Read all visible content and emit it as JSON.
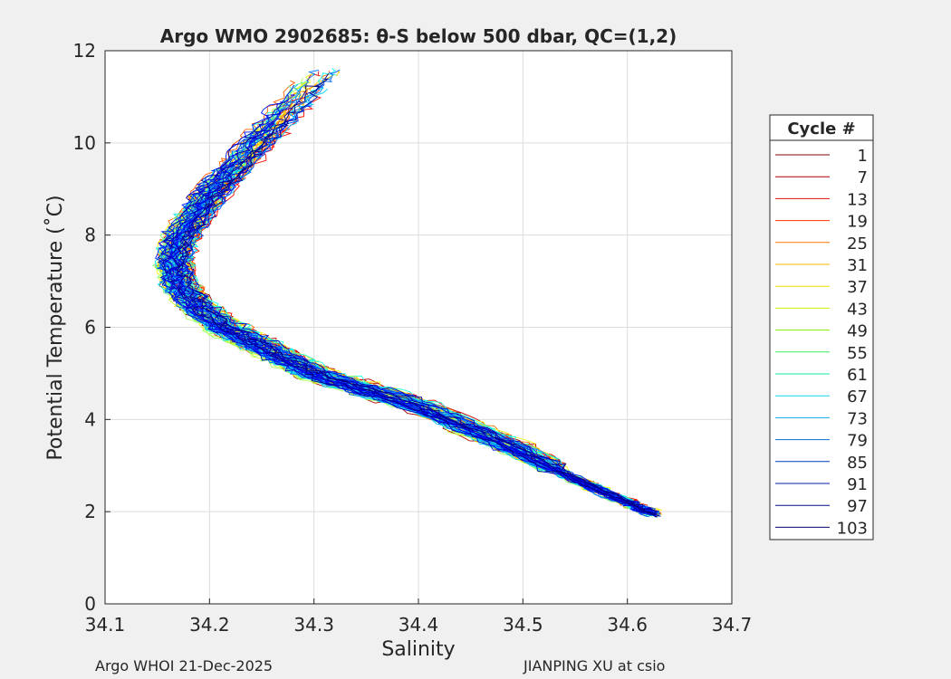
{
  "chart_data": {
    "type": "line",
    "title": "Argo WMO 2902685: θ-S below 500 dbar,  QC=(1,2)",
    "xlabel": "Salinity",
    "ylabel": "Potential Temperature (˚C)",
    "xlim": [
      34.1,
      34.7
    ],
    "ylim": [
      0,
      12
    ],
    "xticks": [
      34.1,
      34.2,
      34.3,
      34.4,
      34.5,
      34.6,
      34.7
    ],
    "yticks": [
      0,
      2,
      4,
      6,
      8,
      10,
      12
    ],
    "grid": true,
    "legend": {
      "title": "Cycle #",
      "placement": "outside-right",
      "entries": [
        "1",
        "7",
        "13",
        "19",
        "25",
        "31",
        "37",
        "43",
        "49",
        "55",
        "61",
        "67",
        "73",
        "79",
        "85",
        "91",
        "97",
        "103"
      ],
      "colors": [
        "#7f0000",
        "#b00000",
        "#e01010",
        "#ff3300",
        "#ff7700",
        "#ffb000",
        "#f0e000",
        "#c8f000",
        "#88f000",
        "#40f060",
        "#10e8a8",
        "#10d8e0",
        "#10a8e8",
        "#0870d0",
        "#0040c0",
        "#0020a8",
        "#00108c",
        "#000070"
      ]
    },
    "series_template": [
      {
        "s": 34.625,
        "t": 1.95
      },
      {
        "s": 34.6,
        "t": 2.2
      },
      {
        "s": 34.55,
        "t": 2.7
      },
      {
        "s": 34.5,
        "t": 3.3
      },
      {
        "s": 34.45,
        "t": 3.8
      },
      {
        "s": 34.4,
        "t": 4.3
      },
      {
        "s": 34.35,
        "t": 4.65
      },
      {
        "s": 34.3,
        "t": 5.0
      },
      {
        "s": 34.27,
        "t": 5.35
      },
      {
        "s": 34.24,
        "t": 5.7
      },
      {
        "s": 34.21,
        "t": 6.05
      },
      {
        "s": 34.185,
        "t": 6.5
      },
      {
        "s": 34.17,
        "t": 6.95
      },
      {
        "s": 34.165,
        "t": 7.4
      },
      {
        "s": 34.17,
        "t": 7.9
      },
      {
        "s": 34.185,
        "t": 8.4
      },
      {
        "s": 34.2,
        "t": 8.9
      },
      {
        "s": 34.22,
        "t": 9.4
      },
      {
        "s": 34.24,
        "t": 9.9
      },
      {
        "s": 34.26,
        "t": 10.4
      },
      {
        "s": 34.28,
        "t": 10.9
      },
      {
        "s": 34.3,
        "t": 11.4
      },
      {
        "s": 34.31,
        "t": 11.6
      }
    ],
    "series_count": 103,
    "colormap": "jet"
  },
  "footer": {
    "left": "Argo WHOI 21-Dec-2025",
    "right": "JIANPING XU at csio"
  }
}
